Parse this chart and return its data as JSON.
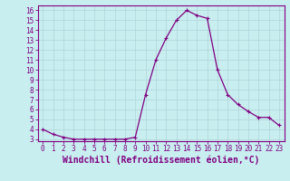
{
  "x": [
    0,
    1,
    2,
    3,
    4,
    5,
    6,
    7,
    8,
    9,
    10,
    11,
    12,
    13,
    14,
    15,
    16,
    17,
    18,
    19,
    20,
    21,
    22,
    23
  ],
  "y": [
    4.0,
    3.5,
    3.2,
    3.0,
    3.0,
    3.0,
    3.0,
    3.0,
    3.0,
    3.2,
    7.5,
    11.0,
    13.2,
    15.0,
    16.0,
    15.5,
    15.2,
    10.0,
    7.5,
    6.5,
    5.8,
    5.2,
    5.2,
    4.4
  ],
  "line_color": "#800080",
  "marker": "+",
  "marker_size": 3,
  "marker_lw": 0.8,
  "bg_color": "#c8eef0",
  "grid_color": "#b0d4d8",
  "xlabel": "Windchill (Refroidissement éolien,°C)",
  "xlim": [
    -0.5,
    23.5
  ],
  "ylim": [
    2.8,
    16.5
  ],
  "xticks": [
    0,
    1,
    2,
    3,
    4,
    5,
    6,
    7,
    8,
    9,
    10,
    11,
    12,
    13,
    14,
    15,
    16,
    17,
    18,
    19,
    20,
    21,
    22,
    23
  ],
  "yticks": [
    3,
    4,
    5,
    6,
    7,
    8,
    9,
    10,
    11,
    12,
    13,
    14,
    15,
    16
  ],
  "font_color": "#800080",
  "tick_fontsize": 5.5,
  "xlabel_fontsize": 7.0,
  "linewidth": 0.9
}
